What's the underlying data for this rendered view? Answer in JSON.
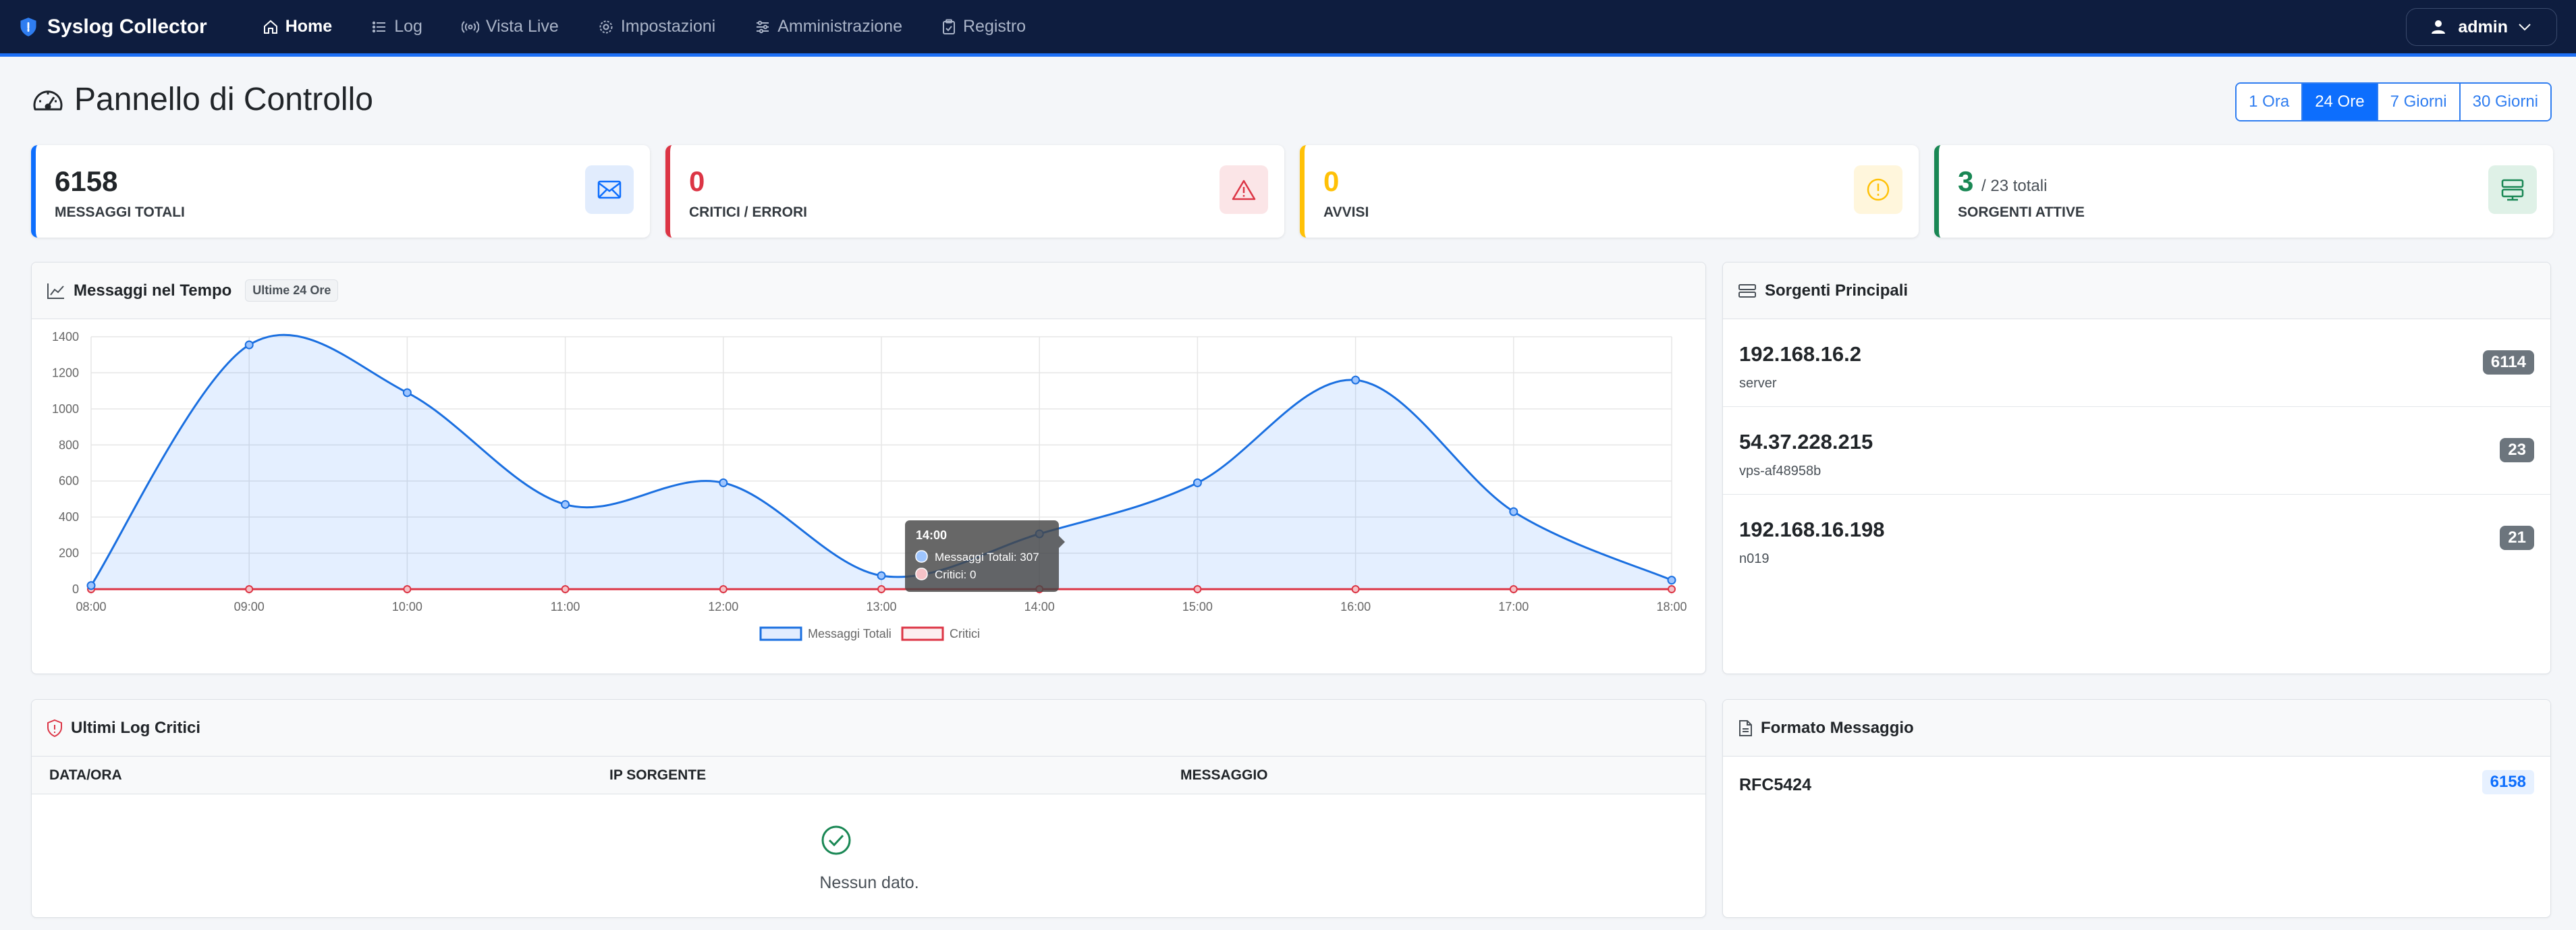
{
  "app": {
    "brand": "Syslog Collector"
  },
  "nav": {
    "home": "Home",
    "log": "Log",
    "live": "Vista Live",
    "settings": "Impostazioni",
    "admin": "Amministrazione",
    "registry": "Registro",
    "user": "admin"
  },
  "header": {
    "title": "Pannello di Controllo",
    "ranges": [
      "1 Ora",
      "24 Ore",
      "7 Giorni",
      "30 Giorni"
    ],
    "active_range": "24 Ore"
  },
  "stats": {
    "total": {
      "value": "6158",
      "label": "MESSAGGI TOTALI",
      "color": "#0d6efd"
    },
    "critical": {
      "value": "0",
      "label": "CRITICI / ERRORI",
      "color": "#dc3545"
    },
    "warnings": {
      "value": "0",
      "label": "AVVISI",
      "color": "#ffc107"
    },
    "sources": {
      "value": "3",
      "sub": "/ 23 totali",
      "label": "SORGENTI ATTIVE",
      "color": "#198754"
    }
  },
  "chart_card": {
    "title": "Messaggi nel Tempo",
    "badge": "Ultime 24 Ore"
  },
  "chart_data": {
    "type": "line",
    "x": [
      "08:00",
      "09:00",
      "10:00",
      "11:00",
      "12:00",
      "13:00",
      "14:00",
      "15:00",
      "16:00",
      "17:00",
      "18:00"
    ],
    "series": [
      {
        "name": "Messaggi Totali",
        "color": "#1a6fe0",
        "values": [
          20,
          1355,
          1090,
          470,
          590,
          75,
          307,
          590,
          1160,
          430,
          50
        ]
      },
      {
        "name": "Critici",
        "color": "#dc3545",
        "values": [
          0,
          0,
          0,
          0,
          0,
          0,
          0,
          0,
          0,
          0,
          0
        ]
      }
    ],
    "yticks": [
      0,
      200,
      400,
      600,
      800,
      1000,
      1200,
      1400
    ],
    "ylim": [
      0,
      1400
    ],
    "grid": true,
    "legend": "bottom",
    "tooltip": {
      "title": "14:00",
      "line1": "Messaggi Totali: 307",
      "line2": "Critici: 0"
    }
  },
  "top_sources": {
    "title": "Sorgenti Principali",
    "items": [
      {
        "ip": "192.168.16.2",
        "host": "server",
        "count": "6114"
      },
      {
        "ip": "54.37.228.215",
        "host": "vps-af48958b",
        "count": "23"
      },
      {
        "ip": "192.168.16.198",
        "host": "n019",
        "count": "21"
      }
    ]
  },
  "critical_logs": {
    "title": "Ultimi Log Critici",
    "columns": [
      "DATA/ORA",
      "IP SORGENTE",
      "MESSAGGIO"
    ],
    "empty": "Nessun dato."
  },
  "format": {
    "title": "Formato Messaggio",
    "items": [
      {
        "name": "RFC5424",
        "count": "6158"
      }
    ]
  }
}
